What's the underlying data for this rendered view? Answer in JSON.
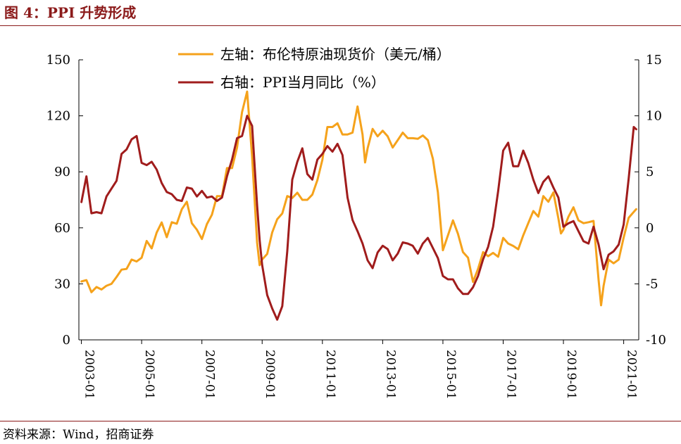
{
  "header": {
    "title": "图 4：PPI 升势形成"
  },
  "footer": {
    "source": "资料来源：Wind，招商证券"
  },
  "colors": {
    "brand": "#8b1a1a",
    "oil": "#f5a21b",
    "ppi": "#a01c1c",
    "axis": "#000000"
  },
  "chart_data": {
    "type": "line",
    "title": "",
    "x_unit": "month",
    "x_ticks": [
      "2003-01",
      "2005-01",
      "2007-01",
      "2009-01",
      "2011-01",
      "2013-01",
      "2015-01",
      "2017-01",
      "2019-01",
      "2021-01"
    ],
    "y_left": {
      "range": [
        0,
        150
      ],
      "ticks": [
        "0",
        "30",
        "60",
        "90",
        "120",
        "150"
      ]
    },
    "y_right": {
      "range": [
        -10,
        15
      ],
      "ticks": [
        "-10",
        "-5",
        "0",
        "5",
        "10",
        "15"
      ]
    },
    "legend_position": "top-center",
    "series": [
      {
        "name": "左轴：布伦特原油现货价（美元/桶）",
        "axis": "left",
        "color_key": "oil",
        "points": [
          [
            "2003-01",
            31.3
          ],
          [
            "2003-03",
            32
          ],
          [
            "2003-05",
            25.5
          ],
          [
            "2003-07",
            28.3
          ],
          [
            "2003-09",
            27
          ],
          [
            "2003-11",
            29
          ],
          [
            "2004-01",
            30
          ],
          [
            "2004-03",
            33.7
          ],
          [
            "2004-05",
            37.6
          ],
          [
            "2004-07",
            38
          ],
          [
            "2004-09",
            43
          ],
          [
            "2004-11",
            42
          ],
          [
            "2005-01",
            44
          ],
          [
            "2005-03",
            53
          ],
          [
            "2005-05",
            49
          ],
          [
            "2005-07",
            57.5
          ],
          [
            "2005-09",
            62.9
          ],
          [
            "2005-11",
            55
          ],
          [
            "2006-01",
            63
          ],
          [
            "2006-03",
            62.2
          ],
          [
            "2006-05",
            70
          ],
          [
            "2006-07",
            74
          ],
          [
            "2006-09",
            62.5
          ],
          [
            "2006-11",
            59
          ],
          [
            "2007-01",
            54
          ],
          [
            "2007-03",
            62
          ],
          [
            "2007-05",
            67
          ],
          [
            "2007-07",
            77
          ],
          [
            "2007-09",
            77
          ],
          [
            "2007-11",
            92
          ],
          [
            "2008-01",
            92
          ],
          [
            "2008-03",
            103
          ],
          [
            "2008-05",
            122
          ],
          [
            "2008-07",
            133
          ],
          [
            "2008-09",
            98
          ],
          [
            "2008-11",
            52
          ],
          [
            "2008-12",
            40
          ],
          [
            "2009-01",
            43
          ],
          [
            "2009-03",
            46
          ],
          [
            "2009-05",
            57.5
          ],
          [
            "2009-07",
            64.6
          ],
          [
            "2009-09",
            67.7
          ],
          [
            "2009-11",
            77
          ],
          [
            "2010-01",
            76
          ],
          [
            "2010-03",
            78.8
          ],
          [
            "2010-05",
            75
          ],
          [
            "2010-07",
            75
          ],
          [
            "2010-09",
            77.8
          ],
          [
            "2010-11",
            85.6
          ],
          [
            "2011-01",
            96.5
          ],
          [
            "2011-03",
            114
          ],
          [
            "2011-05",
            114
          ],
          [
            "2011-07",
            116
          ],
          [
            "2011-09",
            110
          ],
          [
            "2011-11",
            110
          ],
          [
            "2012-01",
            111
          ],
          [
            "2012-03",
            125
          ],
          [
            "2012-05",
            110
          ],
          [
            "2012-06",
            95
          ],
          [
            "2012-07",
            102.6
          ],
          [
            "2012-09",
            113
          ],
          [
            "2012-11",
            109
          ],
          [
            "2013-01",
            112
          ],
          [
            "2013-03",
            109
          ],
          [
            "2013-05",
            103
          ],
          [
            "2013-07",
            107
          ],
          [
            "2013-09",
            111
          ],
          [
            "2013-11",
            108
          ],
          [
            "2014-01",
            108
          ],
          [
            "2014-03",
            107.7
          ],
          [
            "2014-05",
            109.5
          ],
          [
            "2014-07",
            107
          ],
          [
            "2014-09",
            97
          ],
          [
            "2014-11",
            79
          ],
          [
            "2015-01",
            48
          ],
          [
            "2015-03",
            56
          ],
          [
            "2015-05",
            64
          ],
          [
            "2015-07",
            56.8
          ],
          [
            "2015-09",
            47
          ],
          [
            "2015-11",
            44
          ],
          [
            "2016-01",
            31
          ],
          [
            "2016-03",
            38
          ],
          [
            "2016-05",
            47
          ],
          [
            "2016-07",
            44.8
          ],
          [
            "2016-09",
            46.6
          ],
          [
            "2016-11",
            44.5
          ],
          [
            "2017-01",
            54.6
          ],
          [
            "2017-03",
            51.6
          ],
          [
            "2017-05",
            50.3
          ],
          [
            "2017-07",
            48.5
          ],
          [
            "2017-09",
            56
          ],
          [
            "2017-11",
            62.5
          ],
          [
            "2018-01",
            69
          ],
          [
            "2018-03",
            66
          ],
          [
            "2018-05",
            77
          ],
          [
            "2018-07",
            74
          ],
          [
            "2018-09",
            79
          ],
          [
            "2018-11",
            65
          ],
          [
            "2018-12",
            57
          ],
          [
            "2019-01",
            59
          ],
          [
            "2019-03",
            66
          ],
          [
            "2019-05",
            71
          ],
          [
            "2019-07",
            64
          ],
          [
            "2019-09",
            62.5
          ],
          [
            "2019-11",
            63
          ],
          [
            "2020-01",
            63.7
          ],
          [
            "2020-03",
            32
          ],
          [
            "2020-04",
            18.5
          ],
          [
            "2020-05",
            29
          ],
          [
            "2020-07",
            43
          ],
          [
            "2020-09",
            41
          ],
          [
            "2020-11",
            43
          ],
          [
            "2021-01",
            54.8
          ],
          [
            "2021-03",
            65.4
          ],
          [
            "2021-05",
            68.5
          ],
          [
            "2021-06",
            70
          ]
        ]
      },
      {
        "name": "右轴：PPI当月同比（%）",
        "axis": "right",
        "color_key": "ppi",
        "points": [
          [
            "2003-01",
            2.3
          ],
          [
            "2003-03",
            4.6
          ],
          [
            "2003-05",
            1.3
          ],
          [
            "2003-07",
            1.4
          ],
          [
            "2003-09",
            1.3
          ],
          [
            "2003-11",
            2.8
          ],
          [
            "2004-01",
            3.5
          ],
          [
            "2004-03",
            4.2
          ],
          [
            "2004-05",
            6.6
          ],
          [
            "2004-07",
            7.0
          ],
          [
            "2004-09",
            7.9
          ],
          [
            "2004-11",
            8.2
          ],
          [
            "2005-01",
            5.8
          ],
          [
            "2005-03",
            5.6
          ],
          [
            "2005-05",
            5.9
          ],
          [
            "2005-07",
            5.2
          ],
          [
            "2005-09",
            4.0
          ],
          [
            "2005-11",
            3.2
          ],
          [
            "2006-01",
            3.0
          ],
          [
            "2006-03",
            2.5
          ],
          [
            "2006-05",
            2.4
          ],
          [
            "2006-07",
            3.6
          ],
          [
            "2006-09",
            3.5
          ],
          [
            "2006-11",
            2.8
          ],
          [
            "2007-01",
            3.3
          ],
          [
            "2007-03",
            2.7
          ],
          [
            "2007-05",
            2.8
          ],
          [
            "2007-07",
            2.4
          ],
          [
            "2007-09",
            2.7
          ],
          [
            "2007-11",
            4.6
          ],
          [
            "2008-01",
            6.1
          ],
          [
            "2008-03",
            8.0
          ],
          [
            "2008-05",
            8.2
          ],
          [
            "2008-07",
            10.0
          ],
          [
            "2008-09",
            9.1
          ],
          [
            "2008-11",
            2.0
          ],
          [
            "2008-12",
            -1.1
          ],
          [
            "2009-01",
            -3.3
          ],
          [
            "2009-03",
            -6.0
          ],
          [
            "2009-05",
            -7.2
          ],
          [
            "2009-07",
            -8.2
          ],
          [
            "2009-09",
            -7.0
          ],
          [
            "2009-11",
            -2.1
          ],
          [
            "2010-01",
            4.3
          ],
          [
            "2010-03",
            5.9
          ],
          [
            "2010-05",
            7.1
          ],
          [
            "2010-07",
            4.8
          ],
          [
            "2010-09",
            4.3
          ],
          [
            "2010-11",
            6.1
          ],
          [
            "2011-01",
            6.6
          ],
          [
            "2011-03",
            7.3
          ],
          [
            "2011-05",
            6.8
          ],
          [
            "2011-07",
            7.5
          ],
          [
            "2011-09",
            6.5
          ],
          [
            "2011-11",
            2.7
          ],
          [
            "2012-01",
            0.7
          ],
          [
            "2012-03",
            -0.3
          ],
          [
            "2012-05",
            -1.4
          ],
          [
            "2012-07",
            -2.9
          ],
          [
            "2012-09",
            -3.6
          ],
          [
            "2012-11",
            -2.2
          ],
          [
            "2013-01",
            -1.6
          ],
          [
            "2013-03",
            -1.9
          ],
          [
            "2013-05",
            -2.9
          ],
          [
            "2013-07",
            -2.3
          ],
          [
            "2013-09",
            -1.3
          ],
          [
            "2013-11",
            -1.4
          ],
          [
            "2014-01",
            -1.6
          ],
          [
            "2014-03",
            -2.3
          ],
          [
            "2014-05",
            -1.4
          ],
          [
            "2014-07",
            -0.9
          ],
          [
            "2014-09",
            -1.8
          ],
          [
            "2014-11",
            -2.7
          ],
          [
            "2015-01",
            -4.3
          ],
          [
            "2015-03",
            -4.6
          ],
          [
            "2015-05",
            -4.6
          ],
          [
            "2015-07",
            -5.4
          ],
          [
            "2015-09",
            -5.9
          ],
          [
            "2015-11",
            -5.9
          ],
          [
            "2016-01",
            -5.3
          ],
          [
            "2016-03",
            -4.3
          ],
          [
            "2016-05",
            -2.8
          ],
          [
            "2016-07",
            -1.7
          ],
          [
            "2016-09",
            0.1
          ],
          [
            "2016-11",
            3.3
          ],
          [
            "2017-01",
            6.9
          ],
          [
            "2017-03",
            7.6
          ],
          [
            "2017-05",
            5.5
          ],
          [
            "2017-07",
            5.5
          ],
          [
            "2017-09",
            6.9
          ],
          [
            "2017-11",
            5.8
          ],
          [
            "2018-01",
            4.3
          ],
          [
            "2018-03",
            3.1
          ],
          [
            "2018-05",
            4.1
          ],
          [
            "2018-07",
            4.6
          ],
          [
            "2018-09",
            3.6
          ],
          [
            "2018-11",
            2.7
          ],
          [
            "2019-01",
            0.1
          ],
          [
            "2019-03",
            0.4
          ],
          [
            "2019-05",
            0.6
          ],
          [
            "2019-07",
            -0.3
          ],
          [
            "2019-09",
            -1.2
          ],
          [
            "2019-11",
            -1.4
          ],
          [
            "2020-01",
            0.1
          ],
          [
            "2020-03",
            -1.5
          ],
          [
            "2020-05",
            -3.7
          ],
          [
            "2020-07",
            -2.4
          ],
          [
            "2020-09",
            -2.1
          ],
          [
            "2020-11",
            -1.5
          ],
          [
            "2021-01",
            0.3
          ],
          [
            "2021-03",
            4.4
          ],
          [
            "2021-05",
            9.0
          ],
          [
            "2021-06",
            8.8
          ]
        ]
      }
    ]
  }
}
